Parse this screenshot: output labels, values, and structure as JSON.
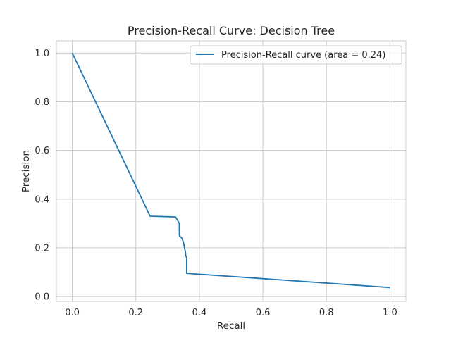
{
  "chart_data": {
    "type": "line",
    "title": "Precision-Recall Curve: Decision Tree",
    "xlabel": "Recall",
    "ylabel": "Precision",
    "xlim": [
      -0.05,
      1.05
    ],
    "ylim": [
      -0.02,
      1.05
    ],
    "xticks": [
      0.0,
      0.2,
      0.4,
      0.6,
      0.8,
      1.0
    ],
    "yticks": [
      0.0,
      0.2,
      0.4,
      0.6,
      0.8,
      1.0
    ],
    "xtick_labels": [
      "0.0",
      "0.2",
      "0.4",
      "0.6",
      "0.8",
      "1.0"
    ],
    "ytick_labels": [
      "0.0",
      "0.2",
      "0.4",
      "0.6",
      "0.8",
      "1.0"
    ],
    "grid": true,
    "legend_position": "top-right",
    "series": [
      {
        "name": "Precision-Recall curve (area = 0.24)",
        "color": "#1f77b4",
        "x": [
          0.0,
          0.245,
          0.32,
          0.325,
          0.335,
          0.337,
          0.337,
          0.345,
          0.35,
          0.352,
          0.353,
          0.355,
          0.356,
          0.357,
          0.36,
          0.36,
          0.362,
          1.0
        ],
        "y": [
          1.0,
          0.33,
          0.327,
          0.327,
          0.305,
          0.3,
          0.25,
          0.24,
          0.222,
          0.21,
          0.2,
          0.19,
          0.185,
          0.168,
          0.16,
          0.095,
          0.095,
          0.037
        ]
      }
    ]
  }
}
